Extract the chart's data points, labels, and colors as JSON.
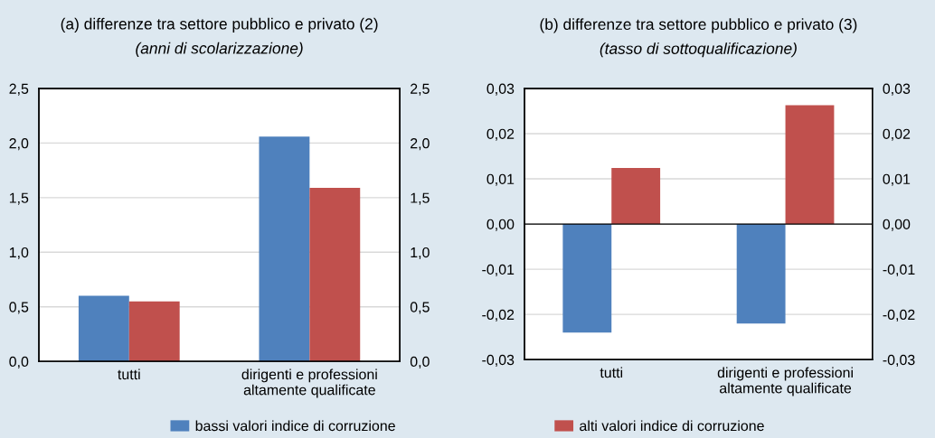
{
  "chart_data": [
    {
      "type": "bar",
      "title": "(a) differenze tra settore pubblico e privato (2)",
      "subtitle": "(anni di scolarizzazione)",
      "categories": [
        "tutti",
        "dirigenti e professioni\naltamente qualificate"
      ],
      "series": [
        {
          "name": "bassi valori indice di corruzione",
          "color": "#4f81bd",
          "values": [
            0.6,
            2.06
          ]
        },
        {
          "name": "alti valori indice di corruzione",
          "color": "#c0504d",
          "values": [
            0.55,
            1.59
          ]
        }
      ],
      "ylim": [
        0,
        2.5
      ],
      "yticks": [
        {
          "value": 0,
          "label": "0,0"
        },
        {
          "value": 0.5,
          "label": "0,5"
        },
        {
          "value": 1,
          "label": "1,0"
        },
        {
          "value": 1.5,
          "label": "1,5"
        },
        {
          "value": 2,
          "label": "2,0"
        },
        {
          "value": 2.5,
          "label": "2,5"
        }
      ],
      "y2lim": [
        0,
        2.5
      ],
      "y2ticks": [
        {
          "value": 0,
          "label": "0,0"
        },
        {
          "value": 0.5,
          "label": "0,5"
        },
        {
          "value": 1,
          "label": "1,0"
        },
        {
          "value": 1.5,
          "label": "1,5"
        },
        {
          "value": 2,
          "label": "2,0"
        },
        {
          "value": 2.5,
          "label": "2,5"
        }
      ],
      "grid": "y",
      "legend": "bottom"
    },
    {
      "type": "bar",
      "title": "(b) differenze tra settore pubblico e privato (3)",
      "subtitle": "(tasso di sottoqualificazione)",
      "categories": [
        "tutti",
        "dirigenti e professioni\naltamente qualificate"
      ],
      "series": [
        {
          "color": "#4f81bd",
          "values": [
            -0.024,
            -0.022
          ]
        },
        {
          "color": "#c0504d",
          "values": [
            0.0124,
            0.0263
          ]
        }
      ],
      "ylim": [
        -0.03,
        0.03
      ],
      "yticks": [
        {
          "value": -0.03,
          "label": "-0,03"
        },
        {
          "value": -0.02,
          "label": "-0,02"
        },
        {
          "value": -0.01,
          "label": "-0,01"
        },
        {
          "value": 0,
          "label": "0,00"
        },
        {
          "value": 0.01,
          "label": "0,01"
        },
        {
          "value": 0.02,
          "label": "0,02"
        },
        {
          "value": 0.03,
          "label": "0,03"
        }
      ],
      "y2lim": [
        -0.03,
        0.03
      ],
      "y2ticks": [
        {
          "value": -0.03,
          "label": "-0,03"
        },
        {
          "value": -0.02,
          "label": "-0,02"
        },
        {
          "value": -0.01,
          "label": "-0,01"
        },
        {
          "value": 0,
          "label": "0,00"
        },
        {
          "value": 0.01,
          "label": "0,01"
        },
        {
          "value": 0.02,
          "label": "0,02"
        },
        {
          "value": 0.03,
          "label": "0,03"
        }
      ],
      "ref_lines": [
        {
          "axis": "y",
          "value": 0,
          "color": "#000000"
        }
      ],
      "grid": "y"
    }
  ]
}
